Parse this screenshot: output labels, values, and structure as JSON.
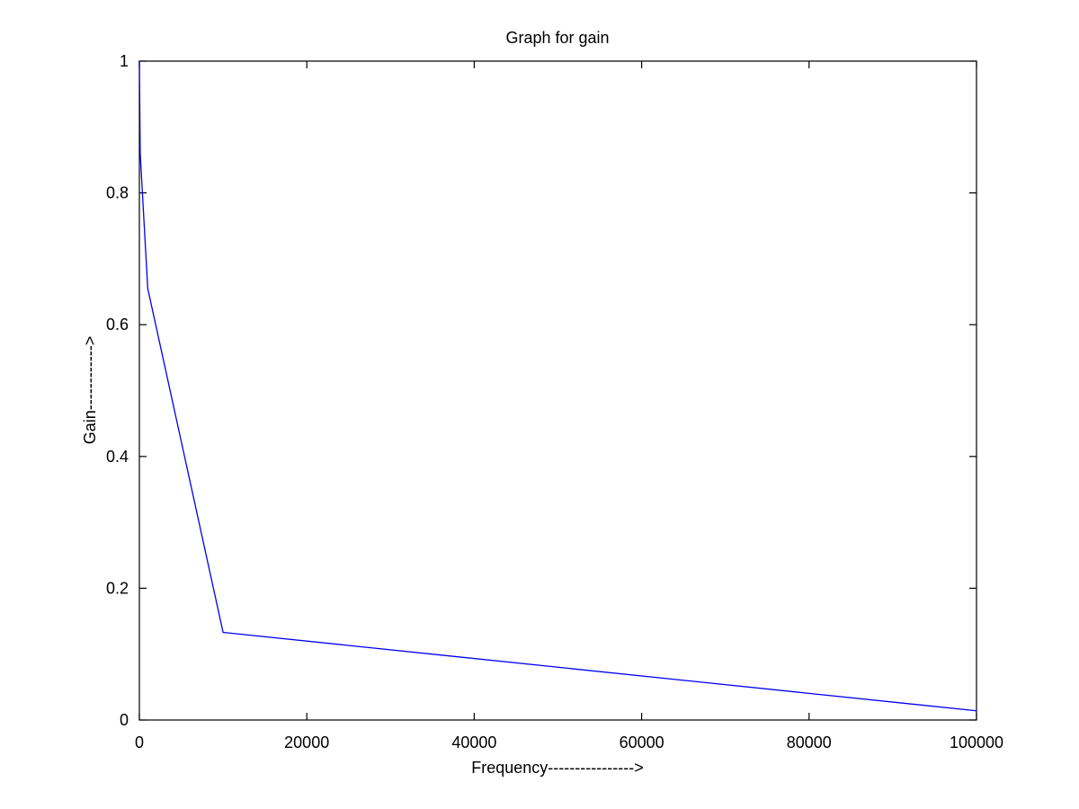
{
  "chart_data": {
    "type": "line",
    "title": "Graph for gain",
    "xlabel": "Frequency---------------->",
    "ylabel": "Gain------------>",
    "xlim": [
      0,
      100000
    ],
    "ylim": [
      0,
      1
    ],
    "xticks": [
      0,
      20000,
      40000,
      60000,
      80000,
      100000
    ],
    "yticks": [
      0,
      0.2,
      0.4,
      0.6,
      0.8,
      1
    ],
    "grid": false,
    "colors": {
      "line": "#0000ee",
      "axes": "#000000"
    },
    "series": [
      {
        "x": [
          0,
          100,
          1000,
          10000,
          100000
        ],
        "y": [
          1.0,
          0.86,
          0.655,
          0.133,
          0.014
        ]
      }
    ]
  }
}
